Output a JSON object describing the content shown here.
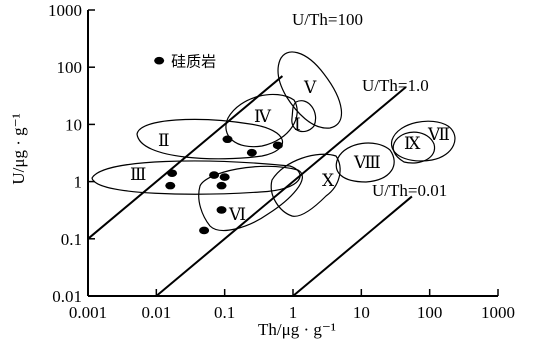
{
  "chart_data": {
    "type": "scatter",
    "x_scale": "log",
    "y_scale": "log",
    "xlim": [
      0.001,
      1000
    ],
    "ylim": [
      0.01,
      1000
    ],
    "x_ticks": [
      "0.001",
      "0.01",
      "0.1",
      "1",
      "10",
      "100",
      "1000"
    ],
    "y_ticks": [
      "0.01",
      "0.1",
      "1",
      "10",
      "100",
      "1000"
    ],
    "xlabel": "Th/μg · g⁻¹",
    "ylabel": "U/μg · g⁻¹",
    "grid": false,
    "points": [
      {
        "x": 0.011,
        "y": 130
      },
      {
        "x": 0.11,
        "y": 5.5
      },
      {
        "x": 0.25,
        "y": 3.2
      },
      {
        "x": 0.6,
        "y": 4.3
      },
      {
        "x": 0.017,
        "y": 1.4
      },
      {
        "x": 0.016,
        "y": 0.85
      },
      {
        "x": 0.07,
        "y": 1.3
      },
      {
        "x": 0.09,
        "y": 0.85
      },
      {
        "x": 0.1,
        "y": 1.2
      },
      {
        "x": 0.09,
        "y": 0.32
      },
      {
        "x": 0.05,
        "y": 0.14
      }
    ],
    "ratio_lines": [
      {
        "label": "U/Th=100",
        "ratio": 100
      },
      {
        "label": "U/Th=1.0",
        "ratio": 1.0
      },
      {
        "label": "U/Th=0.01",
        "ratio": 0.01
      }
    ],
    "annotations": [
      {
        "text": "硅质岩"
      }
    ],
    "regions": [
      {
        "label": "Ⅰ"
      },
      {
        "label": "Ⅱ"
      },
      {
        "label": "Ⅲ"
      },
      {
        "label": "Ⅳ"
      },
      {
        "label": "Ⅴ"
      },
      {
        "label": "Ⅵ"
      },
      {
        "label": "Ⅶ"
      },
      {
        "label": "Ⅷ"
      },
      {
        "label": "Ⅸ"
      },
      {
        "label": "Ⅹ"
      }
    ]
  }
}
